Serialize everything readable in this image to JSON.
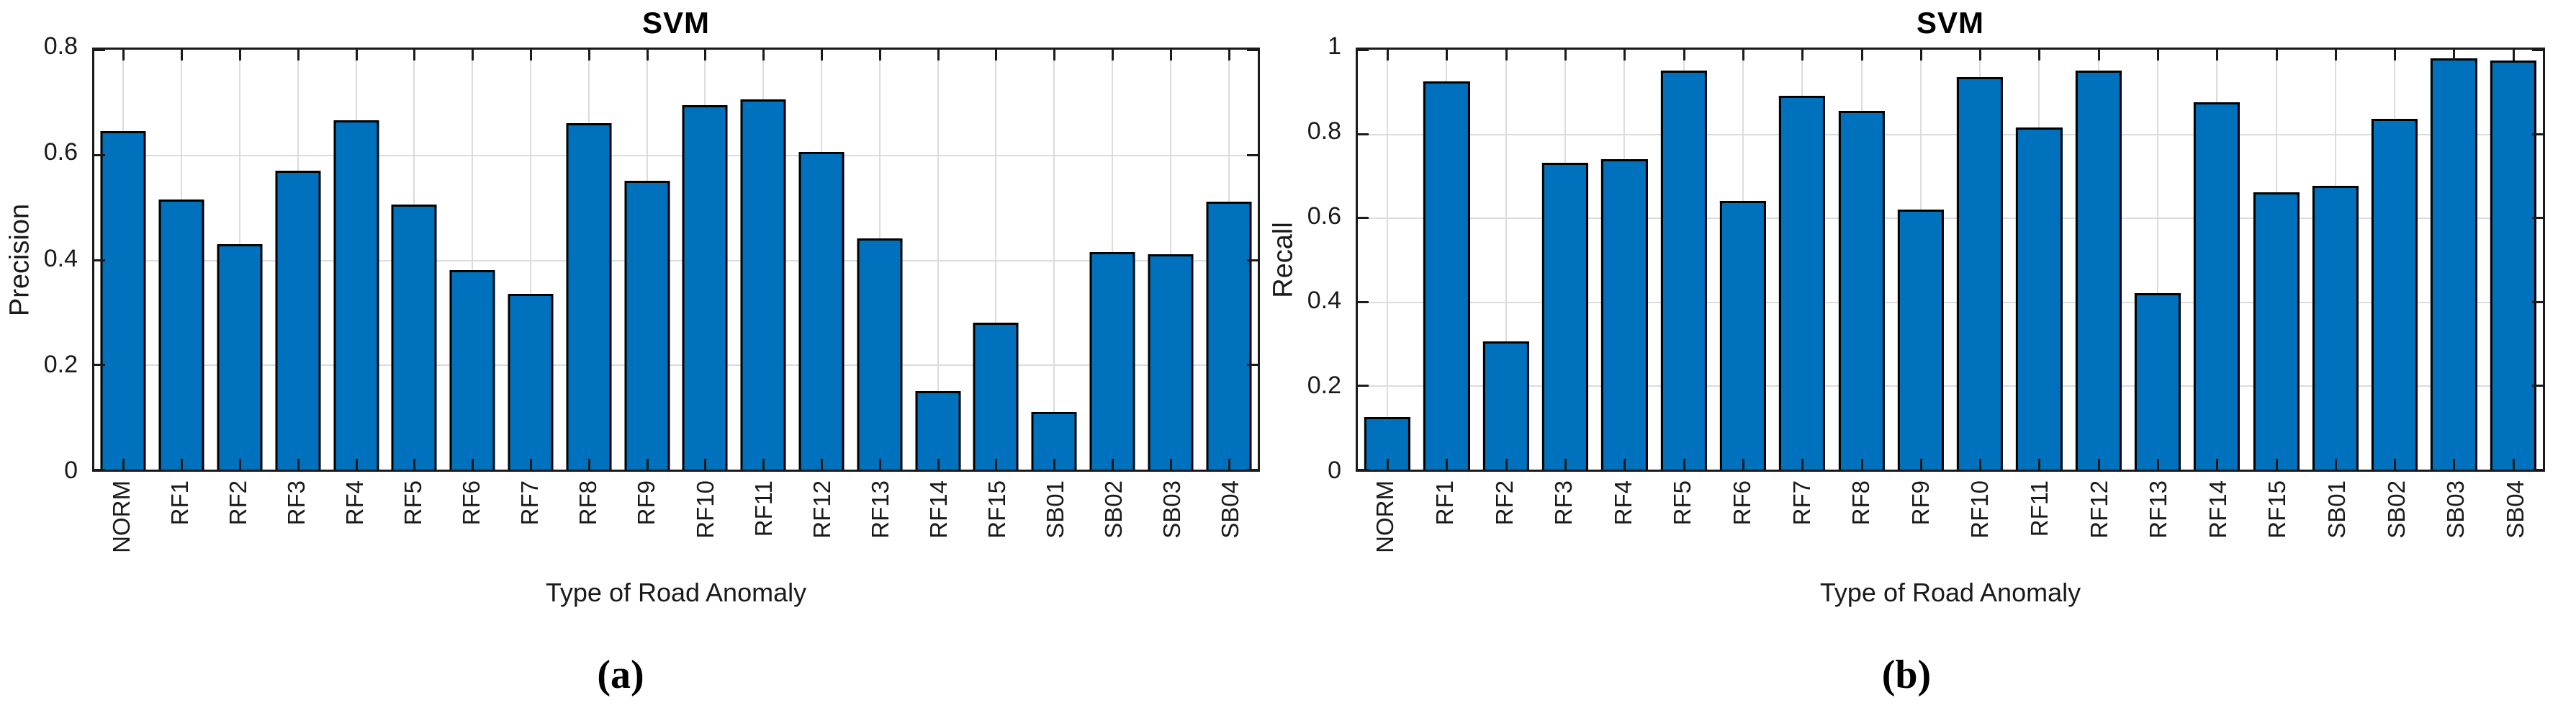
{
  "figure": {
    "background": "#FFFFFF",
    "captions": [
      "(a)",
      "(b)"
    ]
  },
  "colors": {
    "bar_fill": "#0072BD",
    "bar_edge": "#000000",
    "grid": "#DCDCDC",
    "axis": "#1A1A1A",
    "text": "#1A1A1A"
  },
  "chart_data": [
    {
      "type": "bar",
      "title": "SVM",
      "xlabel": "Type of Road Anomaly",
      "ylabel": "Precision",
      "caption": "(a)",
      "ylim": [
        0,
        0.8
      ],
      "yticks": [
        0,
        0.2,
        0.4,
        0.6,
        0.8
      ],
      "ytick_labels": [
        "0",
        "0.2",
        "0.4",
        "0.6",
        "0.8"
      ],
      "grid": true,
      "legend": "none",
      "categories": [
        "NORM",
        "RF1",
        "RF2",
        "RF3",
        "RF4",
        "RF5",
        "RF6",
        "RF7",
        "RF8",
        "RF9",
        "RF10",
        "RF11",
        "RF12",
        "RF13",
        "RF14",
        "RF15",
        "SB01",
        "SB02",
        "SB03",
        "SB04"
      ],
      "values": [
        0.645,
        0.515,
        0.43,
        0.57,
        0.665,
        0.505,
        0.38,
        0.335,
        0.66,
        0.55,
        0.695,
        0.705,
        0.605,
        0.44,
        0.15,
        0.28,
        0.11,
        0.415,
        0.41,
        0.51
      ]
    },
    {
      "type": "bar",
      "title": "SVM",
      "xlabel": "Type of Road Anomaly",
      "ylabel": "Recall",
      "caption": "(b)",
      "ylim": [
        0,
        1
      ],
      "yticks": [
        0,
        0.2,
        0.4,
        0.6,
        0.8,
        1
      ],
      "ytick_labels": [
        "0",
        "0.2",
        "0.4",
        "0.6",
        "0.8",
        "1"
      ],
      "grid": true,
      "legend": "none",
      "categories": [
        "NORM",
        "RF1",
        "RF2",
        "RF3",
        "RF4",
        "RF5",
        "RF6",
        "RF7",
        "RF8",
        "RF9",
        "RF10",
        "RF11",
        "RF12",
        "RF13",
        "RF14",
        "RF15",
        "SB01",
        "SB02",
        "SB03",
        "SB04"
      ],
      "values": [
        0.125,
        0.925,
        0.305,
        0.73,
        0.74,
        0.95,
        0.64,
        0.89,
        0.855,
        0.62,
        0.935,
        0.815,
        0.95,
        0.42,
        0.875,
        0.66,
        0.675,
        0.835,
        0.98,
        0.975
      ]
    }
  ]
}
